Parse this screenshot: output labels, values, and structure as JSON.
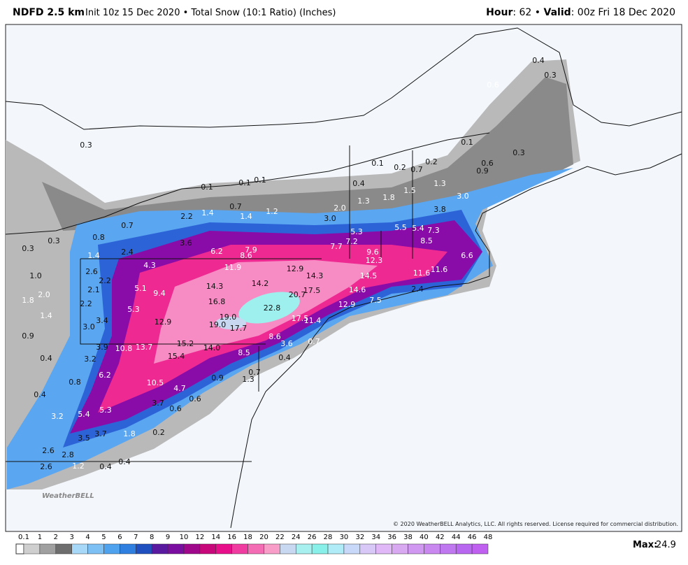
{
  "header": {
    "left": [
      "NDFD 2.5 km",
      "Init 10z 15 Dec 2020 • Total Snow (10:1 Ratio) (Inches)"
    ],
    "right": [
      "Hour",
      ": 62 • ",
      "Valid",
      ": 00z Fri 18 Dec 2020"
    ]
  },
  "map_labels": [
    "0.4",
    "0.3",
    "0.6",
    "0.1",
    "0.3",
    "0.6",
    "0.9",
    "0.2",
    "0.7",
    "0.2",
    "0.1",
    "0.3",
    "0.1",
    "0.1",
    "0.1",
    "1.3",
    "3.0",
    "1.5",
    "1.8",
    "1.3",
    "0.4",
    "2.0",
    "3.8",
    "3.0",
    "1.2",
    "1.4",
    "0.7",
    "1.4",
    "2.2",
    "0.7",
    "0.8",
    "0.3",
    "0.3",
    "1.0",
    "1.8",
    "2.0",
    "1.4",
    "0.9",
    "0.4",
    "0.4",
    "0.8",
    "3.2",
    "2.6",
    "2.8",
    "2.6",
    "1.2",
    "0.4",
    "0.4",
    "3.5",
    "3.7",
    "1.8",
    "0.2",
    "5.4",
    "5.3",
    "3.7",
    "0.6",
    "0.6",
    "4.7",
    "10.5",
    "6.2",
    "3.2",
    "3.9",
    "10.8",
    "13.7",
    "15.2",
    "15.4",
    "14.0",
    "8.5",
    "0.7",
    "1.3",
    "0.9",
    "3.6",
    "8.6",
    "0.4",
    "0.7",
    "11.4",
    "17.5",
    "17.7",
    "19.0",
    "19.0",
    "22.8",
    "20.7",
    "17.5",
    "16.8",
    "14.3",
    "14.2",
    "14.3",
    "12.9",
    "11.9",
    "12.9",
    "9.4",
    "5.1",
    "5.3",
    "4.3",
    "3.4",
    "3.0",
    "2.2",
    "2.1",
    "2.2",
    "2.6",
    "1.4",
    "2.4",
    "3.6",
    "6.2",
    "8.6",
    "7.9",
    "7.7",
    "7.2",
    "5.3",
    "5.5",
    "5.4",
    "7.3",
    "8.5",
    "9.6",
    "12.3",
    "14.5",
    "14.6",
    "12.9",
    "7.5",
    "11.6",
    "11.6",
    "6.6",
    "2.4"
  ],
  "credit": "© 2020 WeatherBELL Analytics, LLC. All rights reserved. License required for commercial distribution.",
  "logo": "WeatherBELL",
  "legend": {
    "levels": [
      0.1,
      1,
      2,
      3,
      4,
      5,
      6,
      7,
      8,
      9,
      10,
      12,
      14,
      16,
      18,
      20,
      22,
      24,
      26,
      28,
      30,
      32,
      34,
      36,
      38,
      40,
      42,
      44,
      46,
      48
    ],
    "colors": [
      "#cfcfcf",
      "#a0a0a0",
      "#6e6e6e",
      "#a8d8f8",
      "#7cc0f4",
      "#4fa3ee",
      "#2f7fe0",
      "#2050c0",
      "#5a1aa0",
      "#7a0ea0",
      "#a0088c",
      "#c8087a",
      "#e8108a",
      "#f03ca0",
      "#f46cb4",
      "#f89cc8",
      "#c8d8f0",
      "#a8f0f0",
      "#88f0e8",
      "#b0ecf8",
      "#c8d8f8",
      "#d8c8f8",
      "#e0b8f8",
      "#d8a8f0",
      "#d098f0",
      "#c888f0",
      "#c078f0",
      "#b868f0",
      "#c060f0"
    ],
    "max_label": "Max:",
    "max": 24.9
  }
}
